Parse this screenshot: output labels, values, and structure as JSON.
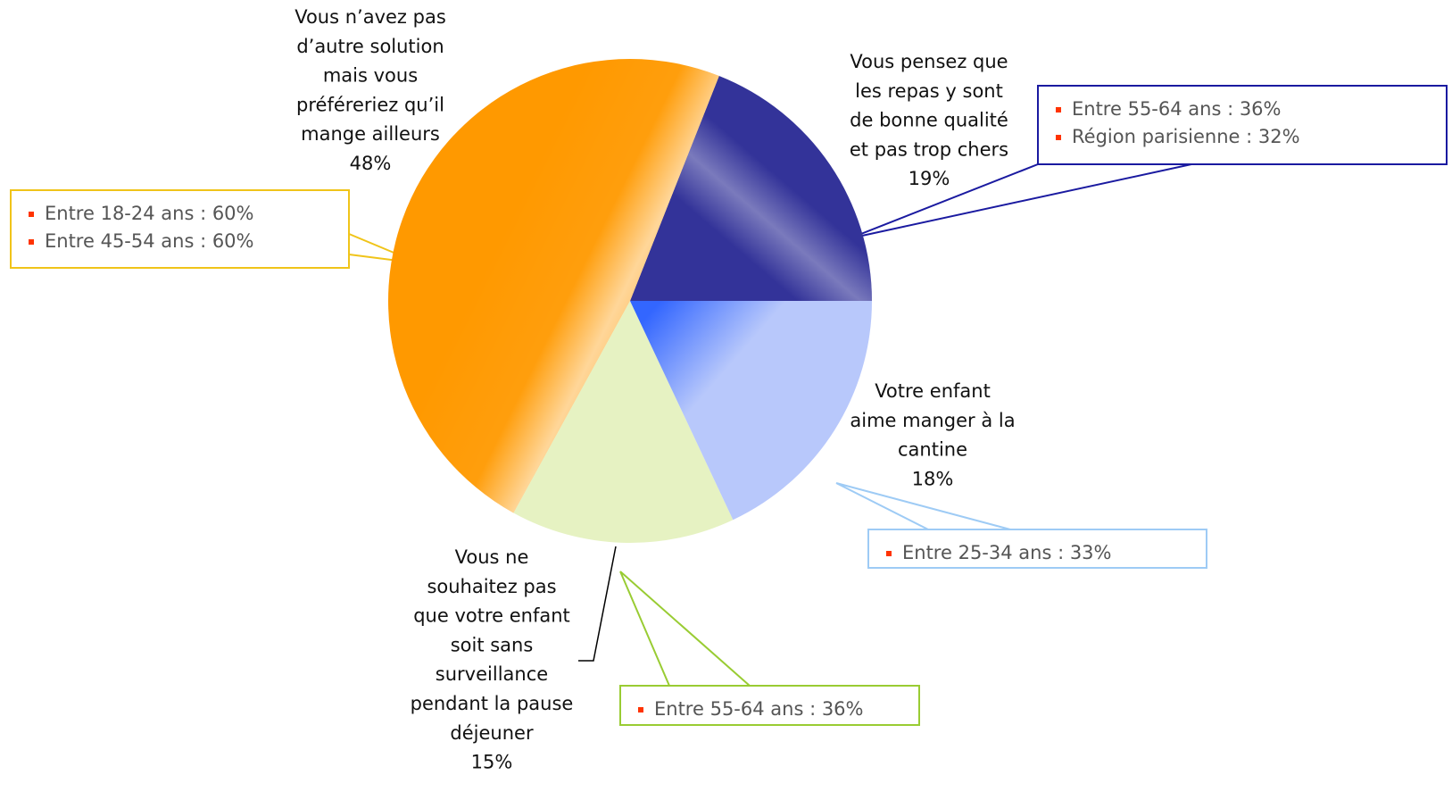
{
  "chart_data": {
    "type": "pie",
    "startangle": 0,
    "counterclock": true,
    "labels": [
      [
        "Vous pensez que",
        "les repas y sont",
        "de bonne qualité",
        "et pas trop chers"
      ],
      [
        "Vous n’avez pas",
        "d’autre solution",
        "mais vous",
        "préféreriez qu’il",
        "mange ailleurs"
      ],
      [
        "Vous ne",
        "souhaitez pas",
        "que votre enfant",
        "soit sans",
        "surveillance",
        "pendant la pause",
        "déjeuner"
      ],
      [
        "Votre enfant",
        "aime manger à la",
        "cantine"
      ]
    ],
    "values": [
      19,
      48,
      15,
      18
    ],
    "value_labels": [
      "19%",
      "48%",
      "15%",
      "18%"
    ],
    "colors": [
      "#333399",
      "#ff9900",
      "#e6f2c2",
      "#b8c8fb"
    ],
    "callouts": [
      [
        "Entre 55-64 ans : 36%",
        "Région parisienne : 32%"
      ],
      [
        "Entre 18-24 ans : 60%",
        "Entre 45-54 ans : 60%"
      ],
      [
        "Entre 55-64 ans : 36%"
      ],
      [
        "Entre 25-34 ans : 33%"
      ]
    ],
    "callout_colors": [
      "#1a1aa0",
      "#f0c419",
      "#99cc33",
      "#9ecbf5"
    ]
  }
}
